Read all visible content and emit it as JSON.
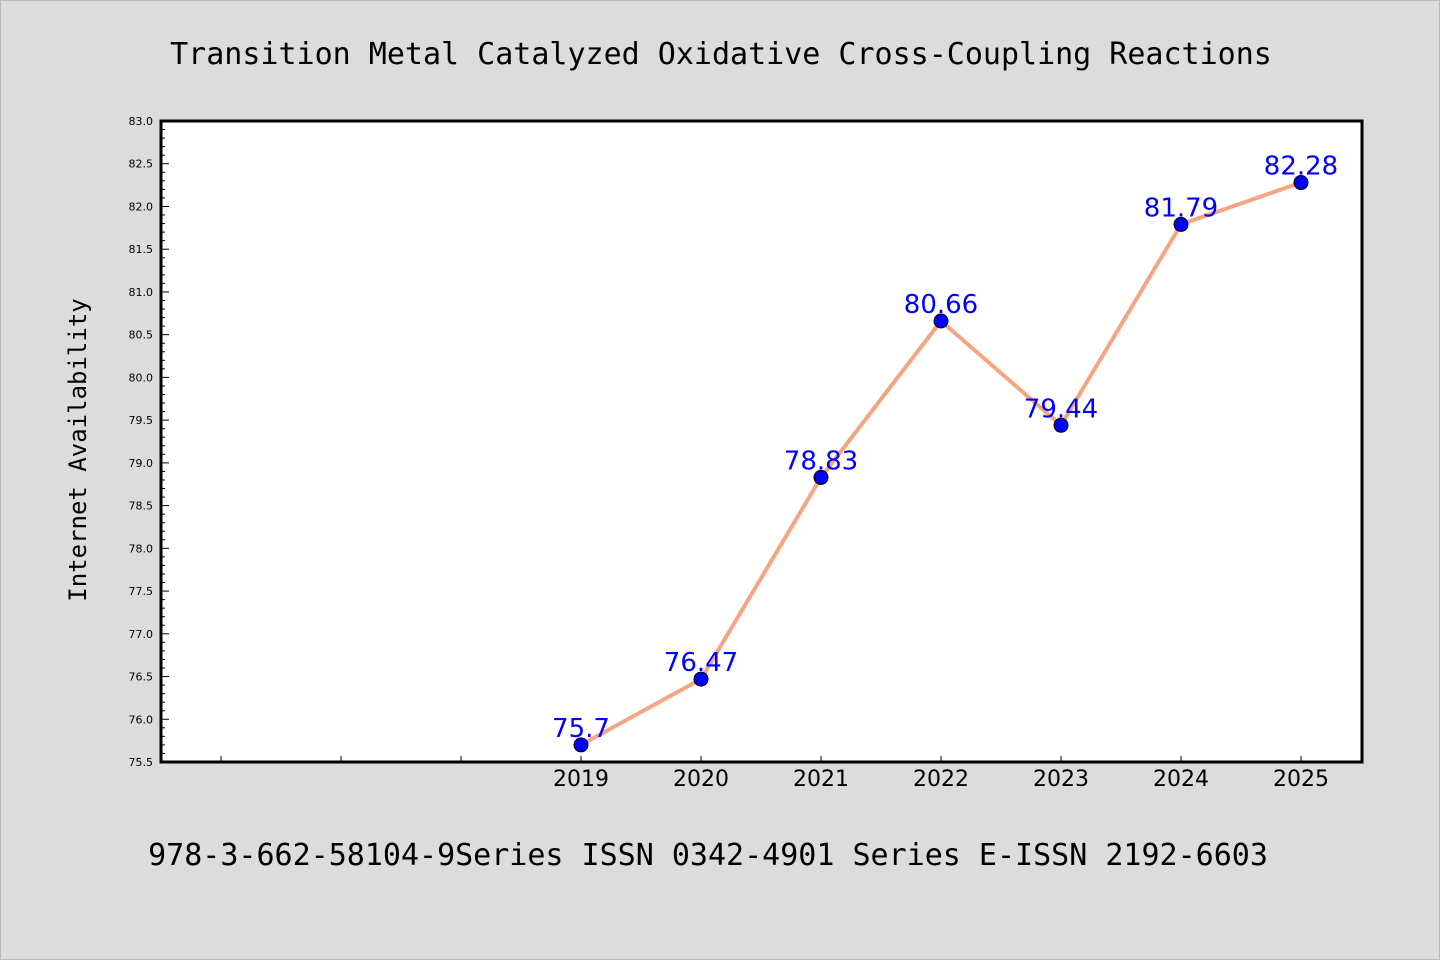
{
  "chart_data": {
    "type": "line",
    "title": "Transition Metal Catalyzed Oxidative Cross-Coupling Reactions",
    "subtitle": "",
    "xlabel": "",
    "ylabel": "Internet Availability",
    "caption": "978-3-662-58104-9Series ISSN 0342-4901 Series E-ISSN 2192-6603",
    "x": [
      "2019",
      "2020",
      "2021",
      "2022",
      "2023",
      "2024",
      "2025"
    ],
    "series": [
      {
        "values": [
          75.7,
          76.47,
          78.83,
          80.66,
          79.44,
          81.79,
          82.28
        ],
        "labels": [
          "75.7",
          "76.47",
          "78.83",
          "80.66",
          "79.44",
          "81.79",
          "82.28"
        ],
        "line_color": "#f4a582",
        "marker_color": "#0000ff",
        "label_color": "#0000ff"
      }
    ],
    "ylim": [
      75.5,
      83.0
    ],
    "y_ticks": [
      "75.5",
      "76.0",
      "76.5",
      "77.0",
      "77.5",
      "78.0",
      "78.5",
      "79.0",
      "79.5",
      "80.0",
      "80.5",
      "81.0",
      "81.5",
      "82.0",
      "82.5",
      "83.0"
    ],
    "grid": false,
    "legend": "none",
    "colors": {
      "background": "#dcdcdc",
      "plot_background": "#ffffff",
      "axis": "#000000"
    }
  }
}
